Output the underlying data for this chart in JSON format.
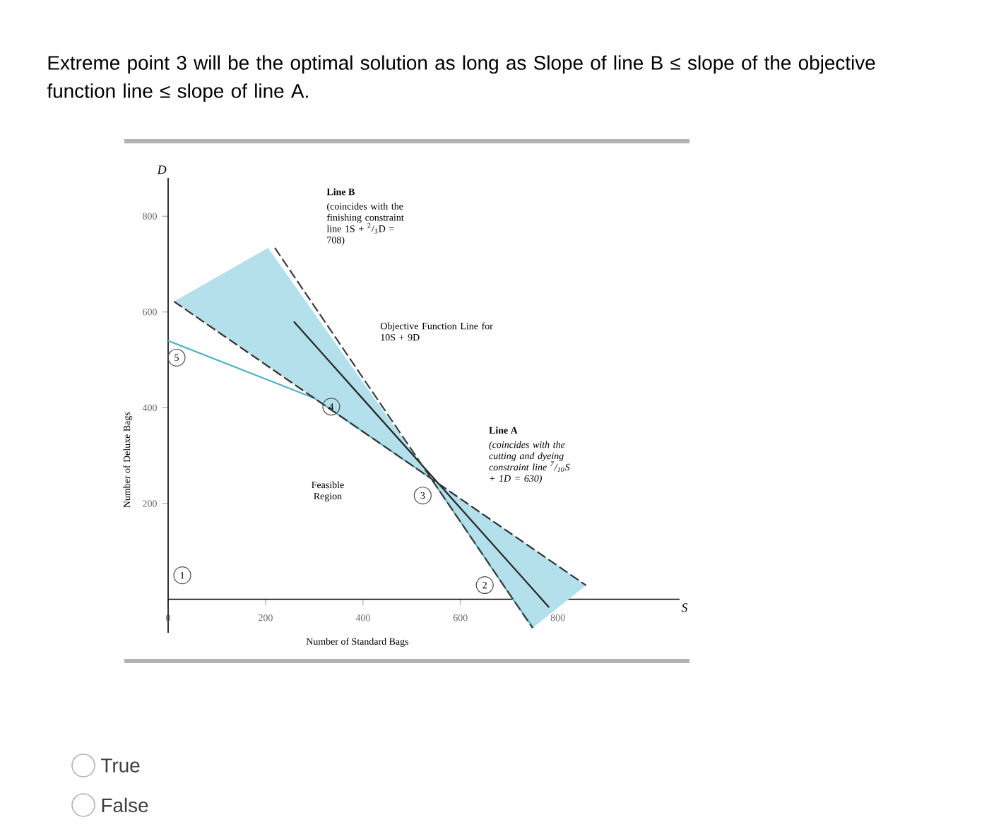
{
  "chart_data": {
    "type": "line",
    "title": "Extreme point 3 will be the optimal solution as long as Slope of line B ≤ slope of the objective function line ≤ slope of line A.",
    "xlabel": "Number of Standard Bags",
    "ylabel": "Number of Deluxe Bags",
    "xlim": [
      0,
      1050
    ],
    "ylim": [
      -70,
      880
    ],
    "xticks": [
      0,
      200,
      400,
      600,
      800
    ],
    "yticks": [
      200,
      400,
      600,
      800
    ],
    "series": [
      {
        "type": "area",
        "color": "#b3e0ea",
        "x": [
          12,
          205,
          540,
          858,
          748,
          540
        ],
        "values": [
          622,
          734,
          252,
          29,
          -60,
          252
        ]
      },
      {
        "color": "#4fb3c6",
        "line_style": "solid",
        "x": [
          0,
          300,
          540,
          708,
          750
        ],
        "values": [
          540,
          420,
          252,
          0,
          -60
        ]
      },
      {
        "color": "#262626",
        "line_style": "solid",
        "x": [
          258,
          782
        ],
        "values": [
          580,
          -17
        ]
      },
      {
        "color": "#333333",
        "line_style": "dashed",
        "x": [
          12,
          300,
          540,
          858
        ],
        "values": [
          622,
          420,
          252,
          29
        ]
      },
      {
        "color": "#3c3c3c",
        "line_style": "dashed",
        "x": [
          219,
          540,
          708,
          748
        ],
        "values": [
          734,
          252,
          0,
          -60
        ]
      }
    ],
    "annotations": [
      "**Line B**",
      "(coincides with the finishing constraint line 1S + $^{2}$/$_{3}$D = 708)",
      "Objective Function Line for 10S + 9D",
      "**Line A**",
      "(coincides with the cutting and dyeing constraint line $^{7}$/$_{10}$S + 1D = 630)",
      "Feasible Region",
      "D",
      "S",
      "True",
      "False",
      "1",
      {
        "text": "2",
        "x": 708,
        "y": 0
      },
      {
        "text": "3",
        "x": 540,
        "y": 252
      },
      {
        "text": "4",
        "x": 300,
        "y": 420
      },
      {
        "text": "5",
        "x": 0,
        "y": 540
      }
    ]
  }
}
